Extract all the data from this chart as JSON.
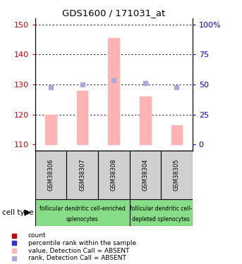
{
  "title": "GDS1600 / 171031_at",
  "samples": [
    "GSM38306",
    "GSM38307",
    "GSM38308",
    "GSM38304",
    "GSM38305"
  ],
  "bar_values": [
    120.0,
    128.0,
    145.5,
    126.0,
    116.5
  ],
  "bar_bottom": 110,
  "rank_values": [
    129.0,
    130.0,
    131.5,
    130.5,
    129.0
  ],
  "ylim_left": [
    108,
    152
  ],
  "ylim_right": [
    -2.27,
    113.6
  ],
  "yticks_left": [
    110,
    120,
    130,
    140,
    150
  ],
  "yticks_right": [
    0,
    25,
    50,
    75,
    100
  ],
  "bar_color": "#ffb3b3",
  "rank_color": "#aaaadd",
  "red_square_color": "#cc0000",
  "blue_square_color": "#3333cc",
  "left_tick_color": "#cc0000",
  "right_tick_color": "#0000cc",
  "sample_bg_color": "#d0d0d0",
  "group_bg_color": "#88dd88",
  "cell_type_label": "cell type",
  "group1_label_line1": "follicular dendritic cell-enriched",
  "group1_label_line2": "splenocytes",
  "group2_label_line1": "follicular dendritic cell-",
  "group2_label_line2": "depleted splenocytes",
  "legend_labels": [
    "count",
    "percentile rank within the sample",
    "value, Detection Call = ABSENT",
    "rank, Detection Call = ABSENT"
  ],
  "legend_colors": [
    "#cc0000",
    "#3333cc",
    "#ffb3b3",
    "#aaaadd"
  ]
}
